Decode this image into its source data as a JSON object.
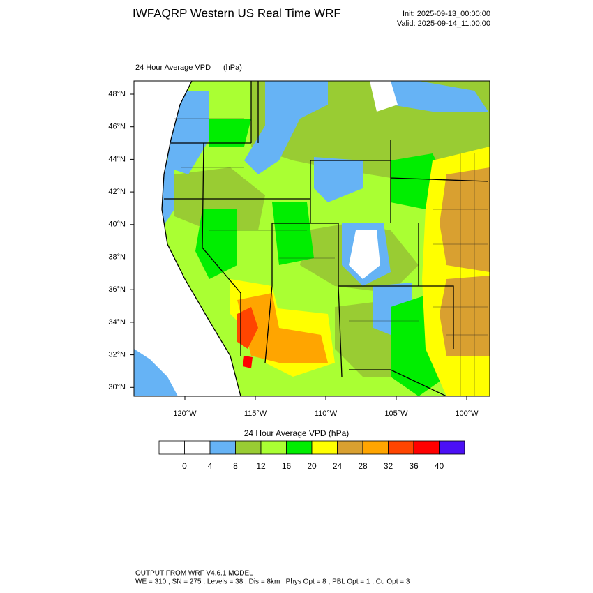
{
  "header": {
    "title": "IWFAQRP Western US Real Time WRF",
    "init": "Init: 2025-09-13_00:00:00",
    "valid": "Valid: 2025-09-14_11:00:00"
  },
  "map": {
    "title": "24 Hour Average VPD",
    "units": "(hPa)",
    "lat_labels": [
      "48°N",
      "46°N",
      "44°N",
      "42°N",
      "40°N",
      "38°N",
      "36°N",
      "34°N",
      "32°N",
      "30°N"
    ],
    "lon_labels": [
      "120°W",
      "115°W",
      "110°W",
      "105°W",
      "100°W"
    ]
  },
  "colorbar": {
    "title": "24 Hour Average VPD  (hPa)",
    "labels": [
      0,
      4,
      8,
      12,
      16,
      20,
      24,
      28,
      32,
      36,
      40
    ],
    "colors": [
      "#ffffff",
      "#ffffff",
      "#66b3f5",
      "#99cc33",
      "#aaff33",
      "#00ee00",
      "#ffff00",
      "#d9a030",
      "#ffa500",
      "#ff4500",
      "#ff0000",
      "#4b10f5"
    ]
  },
  "footer": {
    "line1": "OUTPUT FROM WRF V4.6.1 MODEL",
    "line2": "WE = 310 ; SN = 275 ; Levels = 38 ; Dis = 8km ; Phys Opt = 8 ; PBL Opt = 1 ; Cu Opt = 3"
  }
}
